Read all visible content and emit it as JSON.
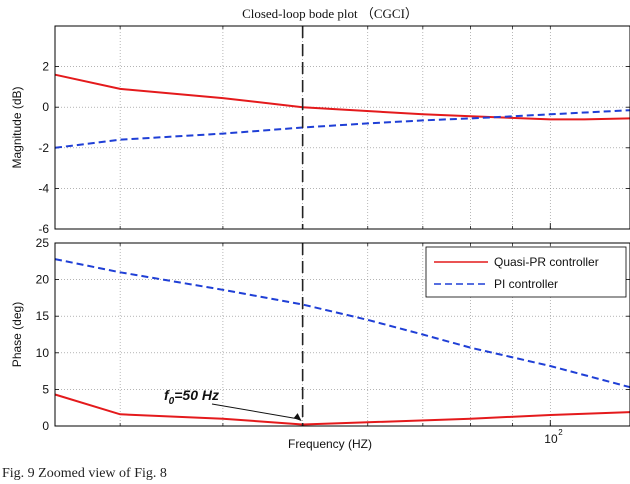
{
  "title": "Closed-loop bode plot （CGCI）",
  "xlabel": "Frequency  (HZ)",
  "caption": "Fig. 9   Zoomed view of Fig. 8",
  "annotation": {
    "text": "f₀=50 Hz",
    "main": "f",
    "sub": "0",
    "rest": "=50 Hz",
    "x": 50
  },
  "colors": {
    "quasi_pr": "#e41a1c",
    "pi": "#1f3fd6",
    "marker": "#222222",
    "grid": "#888888"
  },
  "legend": {
    "entries": [
      "Quasi-PR controller",
      "PI controller"
    ],
    "placement": "top-right of phase panel"
  },
  "chart_data": [
    {
      "type": "line",
      "panel": "magnitude",
      "ylabel": "Magnitude (dB)",
      "xscale": "log",
      "xlim": [
        25,
        125
      ],
      "ylim": [
        -6,
        4
      ],
      "yticks": [
        -6,
        -4,
        -2,
        0,
        2
      ],
      "xticks": [
        100
      ],
      "xtick_labels": [
        "10²"
      ],
      "grid": true,
      "vline": 50,
      "series": [
        {
          "name": "Quasi-PR controller",
          "style": "solid",
          "x": [
            25,
            30,
            40,
            50,
            55,
            70,
            80,
            100,
            110,
            125
          ],
          "y": [
            1.6,
            0.9,
            0.45,
            0.0,
            -0.1,
            -0.35,
            -0.45,
            -0.6,
            -0.6,
            -0.55
          ]
        },
        {
          "name": "PI controller",
          "style": "dashed",
          "x": [
            25,
            30,
            40,
            50,
            60,
            70,
            80,
            90,
            100,
            125
          ],
          "y": [
            -2.0,
            -1.6,
            -1.3,
            -1.0,
            -0.8,
            -0.65,
            -0.55,
            -0.45,
            -0.35,
            -0.15
          ]
        }
      ]
    },
    {
      "type": "line",
      "panel": "phase",
      "ylabel": "Phase (deg)",
      "xscale": "log",
      "xlim": [
        25,
        125
      ],
      "ylim": [
        0,
        25
      ],
      "yticks": [
        0,
        5,
        10,
        15,
        20,
        25
      ],
      "xticks": [
        100
      ],
      "xtick_labels": [
        "10²"
      ],
      "grid": true,
      "vline": 50,
      "series": [
        {
          "name": "Quasi-PR controller",
          "style": "solid",
          "x": [
            25,
            30,
            40,
            50,
            60,
            80,
            100,
            125
          ],
          "y": [
            4.3,
            1.6,
            1.0,
            0.2,
            0.5,
            1.0,
            1.5,
            1.9
          ]
        },
        {
          "name": "PI controller",
          "style": "dashed",
          "x": [
            25,
            30,
            40,
            50,
            60,
            70,
            80,
            100,
            125
          ],
          "y": [
            22.8,
            21.0,
            18.6,
            16.6,
            14.5,
            12.5,
            10.7,
            8.2,
            5.3
          ]
        }
      ]
    }
  ]
}
